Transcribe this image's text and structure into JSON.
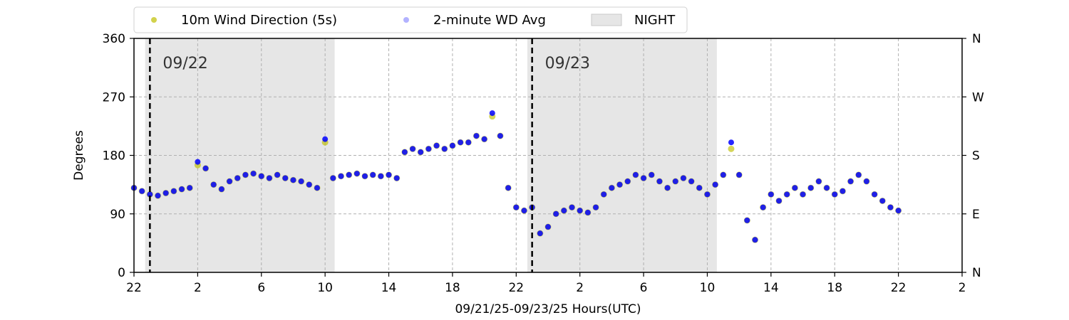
{
  "chart_data": {
    "type": "scatter",
    "xlabel": "09/21/25-09/23/25  Hours(UTC)",
    "ylabel": "Degrees",
    "x_range_hours": [
      22,
      74
    ],
    "ylim": [
      0,
      360
    ],
    "x_ticks": [
      {
        "h": 22,
        "label": "22"
      },
      {
        "h": 26,
        "label": "2"
      },
      {
        "h": 30,
        "label": "6"
      },
      {
        "h": 34,
        "label": "10"
      },
      {
        "h": 38,
        "label": "14"
      },
      {
        "h": 42,
        "label": "18"
      },
      {
        "h": 46,
        "label": "22"
      },
      {
        "h": 50,
        "label": "2"
      },
      {
        "h": 54,
        "label": "6"
      },
      {
        "h": 58,
        "label": "10"
      },
      {
        "h": 62,
        "label": "14"
      },
      {
        "h": 66,
        "label": "18"
      },
      {
        "h": 70,
        "label": "22"
      },
      {
        "h": 74,
        "label": "2"
      }
    ],
    "y_ticks": [
      0,
      90,
      180,
      270,
      360
    ],
    "y2_ticks": [
      {
        "v": 0,
        "label": "N"
      },
      {
        "v": 90,
        "label": "E"
      },
      {
        "v": 180,
        "label": "S"
      },
      {
        "v": 270,
        "label": "W"
      },
      {
        "v": 360,
        "label": "N"
      }
    ],
    "grid": true,
    "legend_position": "top",
    "legend": [
      {
        "label": "10m Wind Direction (5s)",
        "color": "#bfbf00",
        "kind": "point"
      },
      {
        "label": "2-minute WD Avg",
        "color": "#0000ff",
        "kind": "point"
      },
      {
        "label": "NIGHT",
        "color": "#e6e6e6",
        "kind": "patch"
      }
    ],
    "night_spans": [
      [
        22.7,
        34.6
      ],
      [
        46.7,
        58.6
      ]
    ],
    "day_markers": [
      {
        "h": 23.0,
        "label": "09/22"
      },
      {
        "h": 47.0,
        "label": "09/23"
      }
    ],
    "series": [
      {
        "name": "10m Wind Direction (5s)",
        "color": "#bfbf00",
        "x": [
          22.0,
          22.5,
          23.0,
          23.5,
          24.0,
          24.5,
          25.0,
          25.5,
          26.0,
          26.5,
          27.0,
          27.5,
          28.0,
          28.5,
          29.0,
          29.5,
          30.0,
          30.5,
          31.0,
          31.5,
          32.0,
          32.5,
          33.0,
          33.5,
          34.0,
          34.5,
          35.0,
          35.5,
          36.0,
          36.5,
          37.0,
          37.5,
          38.0,
          38.5,
          39.0,
          39.5,
          40.0,
          40.5,
          41.0,
          41.5,
          42.0,
          42.5,
          43.0,
          43.5,
          44.0,
          44.5,
          45.0,
          45.5,
          46.0,
          46.5,
          47.0,
          47.5,
          48.0,
          48.5,
          49.0,
          49.5,
          50.0,
          50.5,
          51.0,
          51.5,
          52.0,
          52.5,
          53.0,
          53.5,
          54.0,
          54.5,
          55.0,
          55.5,
          56.0,
          56.5,
          57.0,
          57.5,
          58.0,
          58.5,
          59.0,
          59.5,
          60.0,
          60.5,
          61.0,
          61.5,
          62.0,
          62.5,
          63.0,
          63.5,
          64.0,
          64.5,
          65.0,
          65.5,
          66.0,
          66.5,
          67.0,
          67.5,
          68.0,
          68.5,
          69.0,
          69.5,
          70.0
        ],
        "y": [
          130,
          125,
          120,
          118,
          122,
          125,
          128,
          130,
          165,
          160,
          135,
          128,
          140,
          145,
          150,
          152,
          148,
          145,
          150,
          145,
          142,
          140,
          135,
          130,
          200,
          145,
          148,
          150,
          152,
          148,
          150,
          148,
          150,
          145,
          185,
          190,
          185,
          190,
          195,
          190,
          195,
          200,
          200,
          210,
          205,
          240,
          210,
          130,
          100,
          95,
          100,
          60,
          70,
          90,
          95,
          100,
          95,
          92,
          100,
          120,
          130,
          135,
          140,
          150,
          145,
          150,
          140,
          130,
          140,
          145,
          140,
          130,
          120,
          135,
          150,
          190,
          150,
          80,
          50,
          100,
          120,
          110,
          120,
          130,
          120,
          130,
          140,
          130,
          120,
          125,
          140,
          150,
          140,
          120,
          110,
          100,
          95
        ]
      },
      {
        "name": "2-minute WD Avg",
        "color": "#0000ff",
        "x": [
          22.0,
          22.5,
          23.0,
          23.5,
          24.0,
          24.5,
          25.0,
          25.5,
          26.0,
          26.5,
          27.0,
          27.5,
          28.0,
          28.5,
          29.0,
          29.5,
          30.0,
          30.5,
          31.0,
          31.5,
          32.0,
          32.5,
          33.0,
          33.5,
          34.0,
          34.5,
          35.0,
          35.5,
          36.0,
          36.5,
          37.0,
          37.5,
          38.0,
          38.5,
          39.0,
          39.5,
          40.0,
          40.5,
          41.0,
          41.5,
          42.0,
          42.5,
          43.0,
          43.5,
          44.0,
          44.5,
          45.0,
          45.5,
          46.0,
          46.5,
          47.0,
          47.5,
          48.0,
          48.5,
          49.0,
          49.5,
          50.0,
          50.5,
          51.0,
          51.5,
          52.0,
          52.5,
          53.0,
          53.5,
          54.0,
          54.5,
          55.0,
          55.5,
          56.0,
          56.5,
          57.0,
          57.5,
          58.0,
          58.5,
          59.0,
          59.5,
          60.0,
          60.5,
          61.0,
          61.5,
          62.0,
          62.5,
          63.0,
          63.5,
          64.0,
          64.5,
          65.0,
          65.5,
          66.0,
          66.5,
          67.0,
          67.5,
          68.0,
          68.5,
          69.0,
          69.5,
          70.0
        ],
        "y": [
          130,
          125,
          120,
          118,
          122,
          125,
          128,
          130,
          170,
          160,
          135,
          128,
          140,
          145,
          150,
          152,
          148,
          145,
          150,
          145,
          142,
          140,
          135,
          130,
          205,
          145,
          148,
          150,
          152,
          148,
          150,
          148,
          150,
          145,
          185,
          190,
          185,
          190,
          195,
          190,
          195,
          200,
          200,
          210,
          205,
          245,
          210,
          130,
          100,
          95,
          100,
          60,
          70,
          90,
          95,
          100,
          95,
          92,
          100,
          120,
          130,
          135,
          140,
          150,
          145,
          150,
          140,
          130,
          140,
          145,
          140,
          130,
          120,
          135,
          150,
          200,
          150,
          80,
          50,
          100,
          120,
          110,
          120,
          130,
          120,
          130,
          140,
          130,
          120,
          125,
          140,
          150,
          140,
          120,
          110,
          100,
          95
        ]
      }
    ]
  }
}
